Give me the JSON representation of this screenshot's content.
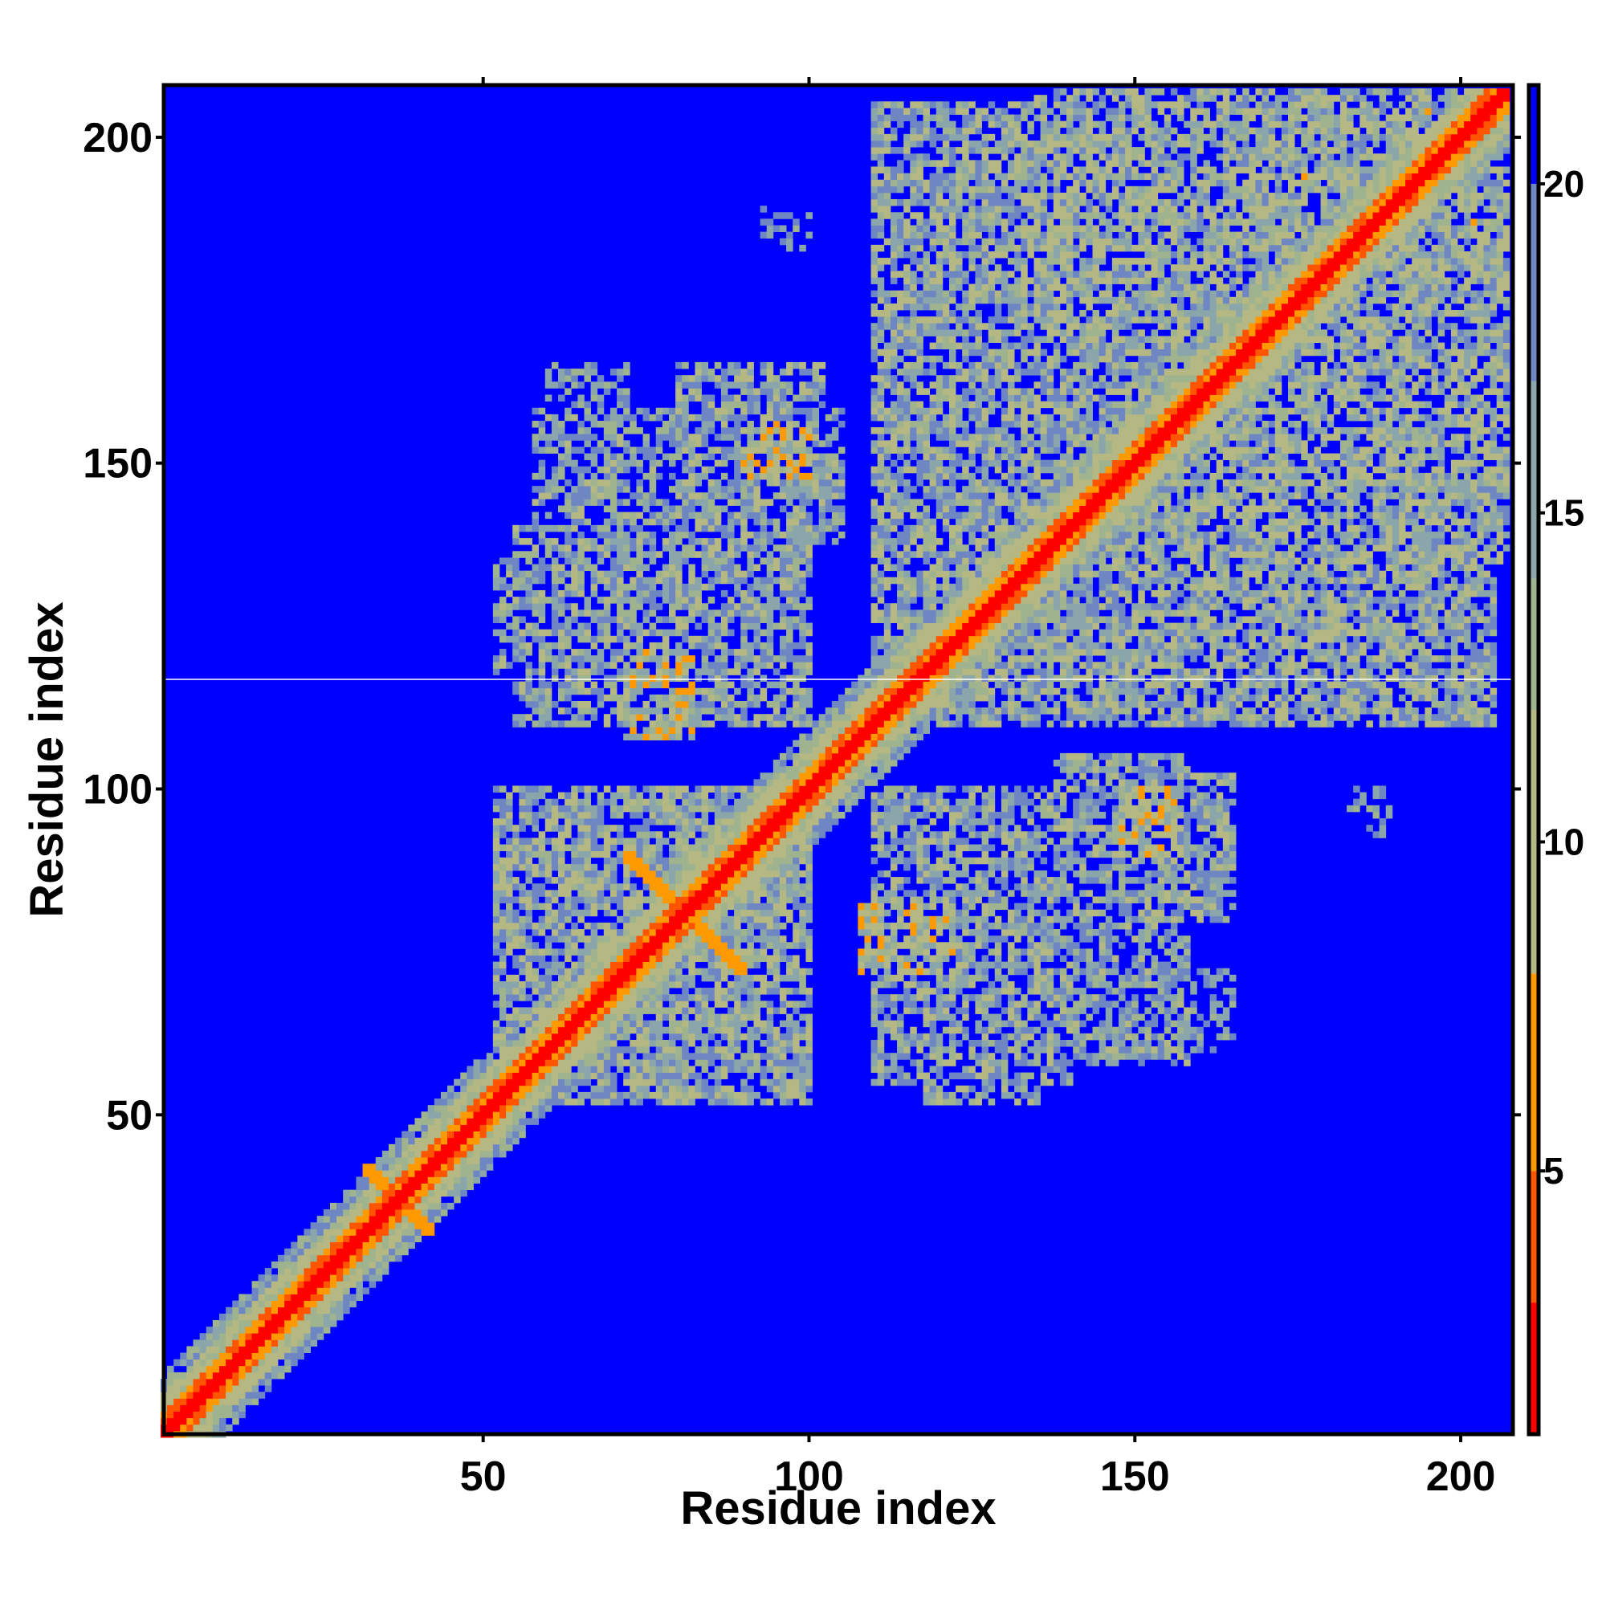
{
  "chart_data": {
    "type": "heatmap",
    "title": "",
    "xlabel": "Residue index",
    "ylabel": "Residue index",
    "n_residues": 207,
    "xlim": [
      1,
      208
    ],
    "ylim": [
      1,
      208
    ],
    "x_ticks": [
      50,
      100,
      150,
      200
    ],
    "y_ticks": [
      50,
      100,
      150,
      200
    ],
    "x_tick_labels": [
      "50",
      "100",
      "150",
      "200"
    ],
    "y_tick_labels": [
      "50",
      "100",
      "150",
      "200"
    ],
    "grid": false,
    "legend": "colorbar-right",
    "colorbar": {
      "range": [
        1,
        21.5
      ],
      "ticks": [
        5,
        10,
        15,
        20
      ],
      "tick_labels": [
        "5",
        "10",
        "15",
        "20"
      ],
      "scale": [
        {
          "max": 3,
          "color": "#ff0000"
        },
        {
          "max": 5,
          "color": "#ff5500"
        },
        {
          "max": 8,
          "color": "#ff9900"
        },
        {
          "max": 12,
          "color": "#b5b883"
        },
        {
          "max": 14,
          "color": "#9fb38f"
        },
        {
          "max": 17,
          "color": "#8aa6ab"
        },
        {
          "max": 20,
          "color": "#6e86c2"
        },
        {
          "max": 99,
          "color": "#0000ff"
        }
      ]
    },
    "contact_regions": [
      {
        "x": [
          1,
          207
        ],
        "y": [
          1,
          207
        ],
        "kind": "diagonal",
        "min_distance": 1.5
      },
      {
        "x": [
          32,
          42
        ],
        "y": [
          32,
          42
        ],
        "kind": "cross",
        "min_distance": 6
      },
      {
        "x": [
          72,
          90
        ],
        "y": [
          72,
          90
        ],
        "kind": "cross",
        "min_distance": 5
      },
      {
        "x": [
          52,
          98
        ],
        "y": [
          55,
          100
        ],
        "kind": "patch",
        "min_distance": 9
      },
      {
        "x": [
          52,
          80
        ],
        "y": [
          118,
          135
        ],
        "kind": "patch",
        "min_distance": 10
      },
      {
        "x": [
          72,
          82
        ],
        "y": [
          108,
          122
        ],
        "kind": "patch",
        "min_distance": 6
      },
      {
        "x": [
          58,
          105
        ],
        "y": [
          138,
          158
        ],
        "kind": "patch",
        "min_distance": 11
      },
      {
        "x": [
          90,
          98
        ],
        "y": [
          148,
          156
        ],
        "kind": "patch",
        "min_distance": 5
      },
      {
        "x": [
          110,
          140
        ],
        "y": [
          55,
          100
        ],
        "kind": "patch",
        "min_distance": 10
      },
      {
        "x": [
          108,
          118
        ],
        "y": [
          72,
          82
        ],
        "kind": "patch",
        "min_distance": 6
      },
      {
        "x": [
          140,
          165
        ],
        "y": [
          80,
          102
        ],
        "kind": "patch",
        "min_distance": 10
      },
      {
        "x": [
          148,
          156
        ],
        "y": [
          92,
          100
        ],
        "kind": "patch",
        "min_distance": 5
      },
      {
        "x": [
          138,
          165
        ],
        "y": [
          60,
          72
        ],
        "kind": "patch",
        "min_distance": 13
      },
      {
        "x": [
          110,
          180
        ],
        "y": [
          120,
          205
        ],
        "kind": "patch",
        "min_distance": 9
      },
      {
        "x": [
          170,
          207
        ],
        "y": [
          135,
          195
        ],
        "kind": "patch",
        "min_distance": 8
      },
      {
        "x": [
          175,
          190
        ],
        "y": [
          118,
          128
        ],
        "kind": "patch",
        "min_distance": 13
      },
      {
        "x": [
          185,
          189
        ],
        "y": [
          93,
          97
        ],
        "kind": "patch",
        "min_distance": 14
      },
      {
        "x": [
          96,
          100
        ],
        "y": [
          183,
          188
        ],
        "kind": "patch",
        "min_distance": 13
      }
    ]
  }
}
